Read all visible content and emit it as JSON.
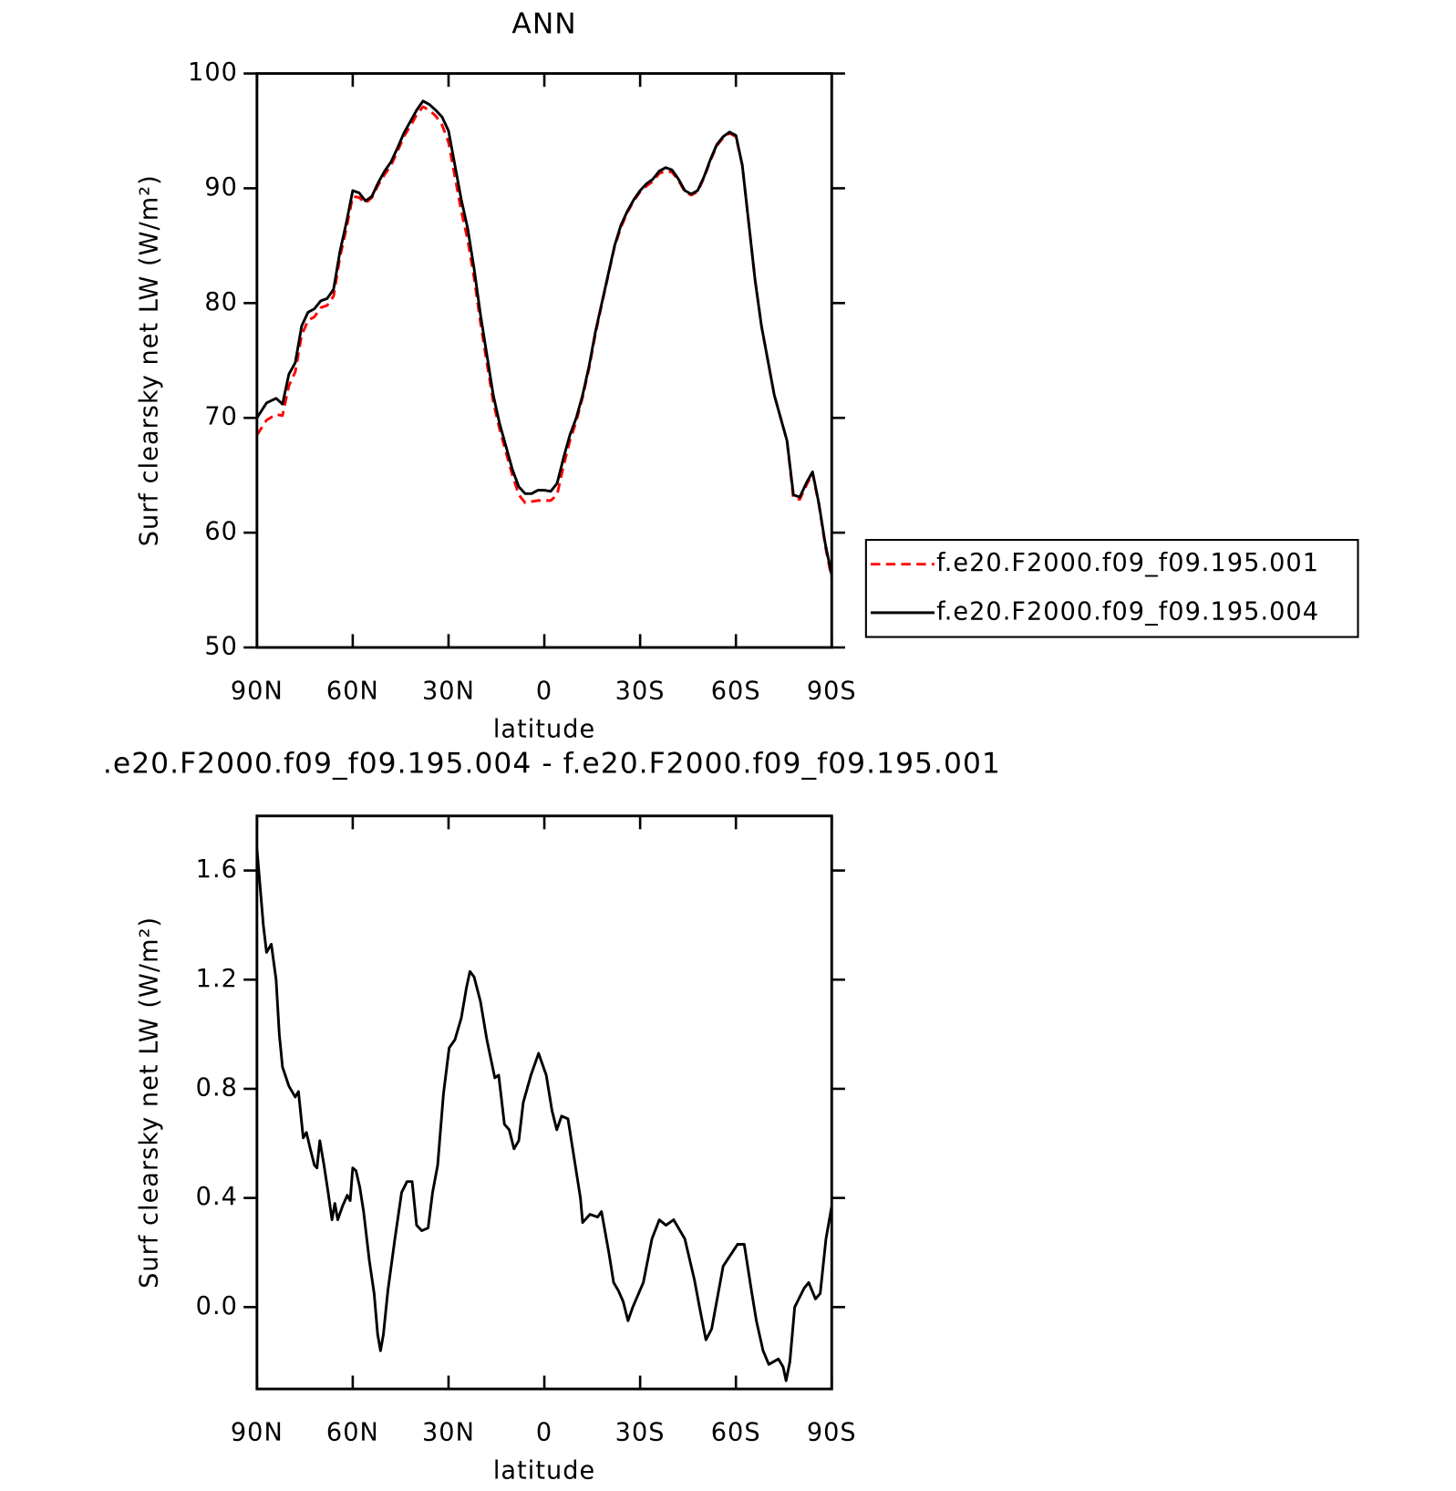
{
  "chart_data": [
    {
      "type": "line",
      "title": "ANN",
      "xlabel": "latitude",
      "ylabel": "Surf clearsky net LW (W/m²)",
      "x": [
        90,
        87,
        84,
        82,
        80,
        78,
        76,
        74,
        72,
        70,
        68,
        66,
        64,
        62,
        60,
        58,
        56,
        54,
        52,
        50,
        48,
        46,
        44,
        42,
        40,
        38,
        36,
        34,
        32,
        30,
        28,
        26,
        24,
        22,
        20,
        18,
        16,
        14,
        12,
        10,
        8,
        6,
        4,
        2,
        0,
        -2,
        -4,
        -6,
        -8,
        -10,
        -12,
        -14,
        -16,
        -18,
        -20,
        -22,
        -24,
        -26,
        -28,
        -30,
        -32,
        -34,
        -36,
        -38,
        -40,
        -42,
        -44,
        -46,
        -48,
        -50,
        -52,
        -54,
        -56,
        -58,
        -60,
        -62,
        -64,
        -66,
        -68,
        -70,
        -72,
        -74,
        -76,
        -78,
        -80,
        -82,
        -84,
        -86,
        -88,
        -90
      ],
      "series": [
        {
          "name": "f.e20.F2000.f09_f09.195.001",
          "color": "#ff0000",
          "linestyle": "dashed",
          "values": [
            68.5,
            69.8,
            70.3,
            70.2,
            72.8,
            74.0,
            77.2,
            78.5,
            78.8,
            79.6,
            79.8,
            80.6,
            84.0,
            86.5,
            89.3,
            89.2,
            88.7,
            89.2,
            90.3,
            91.2,
            92.0,
            93.2,
            94.5,
            95.4,
            96.4,
            97.1,
            96.8,
            96.3,
            95.5,
            94.0,
            91.0,
            88.0,
            85.5,
            82.2,
            78.3,
            74.8,
            71.4,
            69.0,
            67.0,
            65.0,
            63.3,
            62.6,
            62.7,
            62.8,
            62.8,
            62.8,
            63.3,
            65.8,
            68.0,
            69.7,
            71.8,
            74.3,
            77.3,
            79.9,
            82.4,
            84.9,
            86.6,
            87.9,
            88.9,
            89.7,
            90.2,
            90.6,
            91.3,
            91.5,
            91.4,
            90.7,
            89.7,
            89.4,
            89.7,
            90.9,
            92.4,
            93.7,
            94.4,
            94.8,
            94.5,
            92.0,
            87.0,
            82.0,
            78.0,
            75.0,
            72.0,
            70.0,
            68.0,
            63.0,
            62.9,
            64.1,
            65.2,
            62.4,
            58.8,
            56.0
          ]
        },
        {
          "name": "f.e20.F2000.f09_f09.195.004",
          "color": "#000000",
          "linestyle": "solid",
          "values": [
            70.0,
            71.3,
            71.7,
            71.2,
            73.8,
            74.8,
            78.0,
            79.2,
            79.5,
            80.2,
            80.4,
            81.2,
            84.5,
            87.0,
            89.8,
            89.6,
            88.9,
            89.3,
            90.5,
            91.5,
            92.3,
            93.5,
            94.8,
            95.8,
            96.8,
            97.6,
            97.3,
            96.8,
            96.2,
            95.0,
            92.0,
            89.0,
            86.5,
            83.0,
            79.0,
            75.5,
            72.0,
            69.5,
            67.5,
            65.5,
            64.0,
            63.4,
            63.4,
            63.7,
            63.7,
            63.6,
            64.3,
            66.5,
            68.5,
            70.0,
            72.0,
            74.5,
            77.5,
            80.0,
            82.5,
            85.0,
            86.8,
            88.0,
            89.0,
            89.8,
            90.4,
            90.8,
            91.5,
            91.8,
            91.6,
            90.8,
            89.8,
            89.5,
            89.8,
            91.0,
            92.5,
            93.8,
            94.5,
            94.9,
            94.6,
            92.0,
            87.0,
            82.0,
            78.0,
            75.0,
            72.0,
            70.0,
            68.0,
            63.3,
            63.1,
            64.3,
            65.3,
            62.5,
            59.0,
            56.3
          ]
        }
      ],
      "xlim": [
        90,
        -90
      ],
      "xticks": [
        {
          "value": 90,
          "label": "90N"
        },
        {
          "value": 60,
          "label": "60N"
        },
        {
          "value": 30,
          "label": "30N"
        },
        0,
        {
          "value": -30,
          "label": "30S"
        },
        {
          "value": -60,
          "label": "60S"
        },
        {
          "value": -90,
          "label": "90S"
        }
      ],
      "ylim": [
        50,
        100
      ],
      "yticks": [
        50,
        60,
        70,
        80,
        90,
        100
      ],
      "legend": "right"
    },
    {
      "type": "line",
      "title": ".e20.F2000.f09_f09.195.004 - f.e20.F2000.f09_f09.195.001",
      "xlabel": "latitude",
      "ylabel": "Surf clearsky net LW (W/m²)",
      "x": [
        90,
        88,
        87,
        85.5,
        84,
        83,
        82,
        80,
        78,
        77,
        75.5,
        74.5,
        73.3,
        72,
        71.2,
        70.3,
        69,
        67.7,
        66.5,
        65.6,
        64.7,
        63.2,
        61.7,
        60.8,
        60,
        59,
        57.8,
        56.6,
        54.8,
        53.3,
        52.2,
        51.3,
        50.4,
        49,
        46.8,
        44.7,
        43,
        41.4,
        40,
        38.4,
        36.4,
        35,
        33.4,
        31.6,
        29.8,
        28,
        26,
        24.4,
        23.3,
        22,
        20,
        18,
        15.5,
        14.3,
        12.5,
        11,
        9.5,
        8,
        6.6,
        4.2,
        1.8,
        -0.6,
        -2.4,
        -3.9,
        -5.4,
        -7.4,
        -11.3,
        -12,
        -14.3,
        -16.7,
        -17.9,
        -20.2,
        -21.7,
        -23.2,
        -24.7,
        -26.2,
        -27.7,
        -31,
        -33.7,
        -36,
        -38.1,
        -40.5,
        -44,
        -47,
        -48.6,
        -50.6,
        -52.4,
        -56,
        -60.5,
        -62.6,
        -65,
        -66.4,
        -68.5,
        -70.3,
        -73.3,
        -74.8,
        -75.7,
        -76.9,
        -78.4,
        -81.4,
        -82.8,
        -84.9,
        -86.4,
        -88.2,
        -90
      ],
      "series": [
        {
          "color": "#000000",
          "linestyle": "solid",
          "values": [
            1.68,
            1.4,
            1.3,
            1.33,
            1.2,
            1.0,
            0.88,
            0.81,
            0.77,
            0.79,
            0.62,
            0.64,
            0.58,
            0.52,
            0.51,
            0.61,
            0.52,
            0.42,
            0.32,
            0.38,
            0.32,
            0.37,
            0.41,
            0.39,
            0.51,
            0.5,
            0.44,
            0.35,
            0.17,
            0.05,
            -0.1,
            -0.16,
            -0.1,
            0.06,
            0.25,
            0.42,
            0.46,
            0.46,
            0.3,
            0.28,
            0.29,
            0.42,
            0.52,
            0.78,
            0.95,
            0.98,
            1.06,
            1.17,
            1.23,
            1.21,
            1.12,
            0.98,
            0.84,
            0.85,
            0.67,
            0.65,
            0.58,
            0.61,
            0.75,
            0.85,
            0.93,
            0.85,
            0.72,
            0.65,
            0.7,
            0.69,
            0.4,
            0.31,
            0.34,
            0.33,
            0.35,
            0.2,
            0.09,
            0.06,
            0.02,
            -0.05,
            0.0,
            0.09,
            0.25,
            0.32,
            0.3,
            0.32,
            0.25,
            0.1,
            0.0,
            -0.12,
            -0.08,
            0.15,
            0.23,
            0.23,
            0.05,
            -0.05,
            -0.16,
            -0.21,
            -0.19,
            -0.22,
            -0.27,
            -0.2,
            0.0,
            0.07,
            0.09,
            0.03,
            0.05,
            0.25,
            0.37
          ]
        }
      ],
      "xlim": [
        90,
        -90
      ],
      "xticks": [
        {
          "value": 90,
          "label": "90N"
        },
        {
          "value": 60,
          "label": "60N"
        },
        {
          "value": 30,
          "label": "30N"
        },
        0,
        {
          "value": -30,
          "label": "30S"
        },
        {
          "value": -60,
          "label": "60S"
        },
        {
          "value": -90,
          "label": "90S"
        }
      ],
      "ylim": [
        -0.3,
        1.8
      ],
      "yticks": [
        {
          "value": 0,
          "label": "0.0"
        },
        0.4,
        0.8,
        1.2,
        1.6
      ]
    }
  ]
}
